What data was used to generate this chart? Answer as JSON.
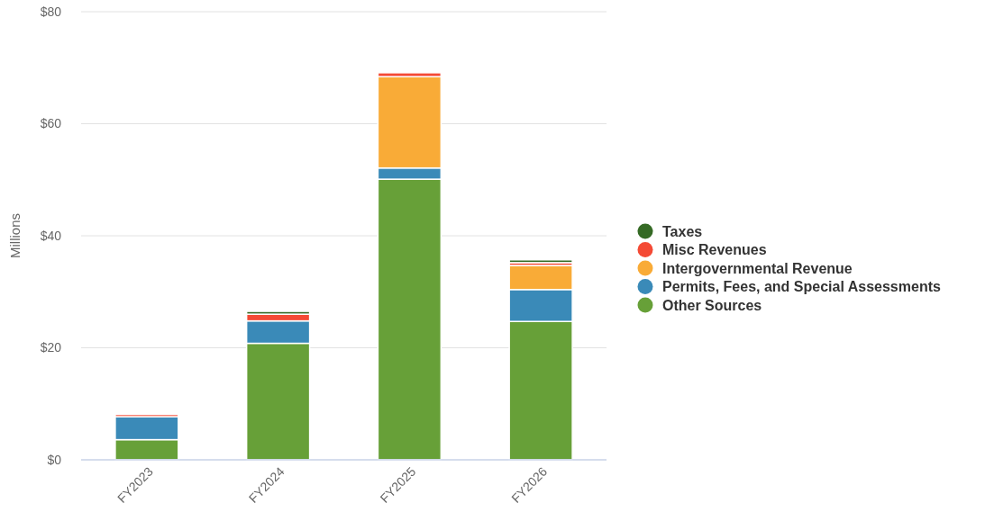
{
  "chart_data": {
    "type": "bar",
    "stacked": true,
    "ylabel": "Millions",
    "categories": [
      "FY2023",
      "FY2024",
      "FY2025",
      "FY2026"
    ],
    "series": [
      {
        "name": "Other Sources",
        "color": "#67a038",
        "values": [
          3.6,
          20.8,
          50.1,
          24.7
        ]
      },
      {
        "name": "Permits, Fees, and Special Assessments",
        "color": "#3a8ab8",
        "values": [
          4.1,
          4.0,
          2.0,
          5.7
        ]
      },
      {
        "name": "Intergovernmental Revenue",
        "color": "#f9ab37",
        "values": [
          0,
          0,
          16.3,
          4.3
        ]
      },
      {
        "name": "Misc Revenues",
        "color": "#f44a35",
        "values": [
          0.4,
          1.2,
          0.7,
          0.5
        ]
      },
      {
        "name": "Taxes",
        "color": "#356a25",
        "values": [
          0,
          0.5,
          0,
          0.5
        ]
      }
    ],
    "ylim": [
      0,
      80
    ],
    "yticks": [
      {
        "value": 0,
        "label": "$0"
      },
      {
        "value": 20,
        "label": "$20"
      },
      {
        "value": 40,
        "label": "$40"
      },
      {
        "value": 60,
        "label": "$60"
      },
      {
        "value": 80,
        "label": "$80"
      }
    ],
    "grid": "y",
    "legend": "right"
  }
}
